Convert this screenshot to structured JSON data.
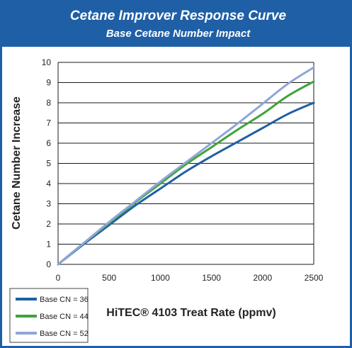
{
  "header": {
    "title": "Cetane Improver Response Curve",
    "subtitle": "Base Cetane Number Impact"
  },
  "colors": {
    "header_bg": "#1f5fa6",
    "grid": "#1a1a1a",
    "series": [
      "#1f5fa6",
      "#3fa33a",
      "#8fa6d6"
    ]
  },
  "chart_data": {
    "type": "line",
    "title": "Cetane Improver Response Curve",
    "subtitle": "Base Cetane Number Impact",
    "xlabel": "HiTEC® 4103 Treat Rate (ppmv)",
    "ylabel": "Cetane Number Increase",
    "xlim": [
      0,
      2500
    ],
    "ylim": [
      0,
      10
    ],
    "x_ticks": [
      "0",
      "500",
      "1000",
      "1500",
      "2000",
      "2500"
    ],
    "y_ticks": [
      "0",
      "1",
      "2",
      "3",
      "4",
      "5",
      "6",
      "7",
      "8",
      "9",
      "10"
    ],
    "grid": "horizontal",
    "legend_position": "bottom-left",
    "x": [
      0,
      250,
      500,
      750,
      1000,
      1250,
      1500,
      1750,
      2000,
      2250,
      2500
    ],
    "series": [
      {
        "name": "Base CN = 36",
        "values": [
          0,
          1.0,
          1.95,
          2.9,
          3.75,
          4.6,
          5.35,
          6.05,
          6.75,
          7.45,
          8.0
        ]
      },
      {
        "name": "Base CN = 44",
        "values": [
          0,
          1.05,
          2.05,
          3.05,
          4.0,
          4.95,
          5.8,
          6.65,
          7.45,
          8.35,
          9.05
        ]
      },
      {
        "name": "Base CN = 52",
        "values": [
          0,
          1.05,
          2.1,
          3.1,
          4.1,
          5.05,
          6.0,
          6.95,
          7.95,
          8.95,
          9.75
        ]
      }
    ]
  }
}
